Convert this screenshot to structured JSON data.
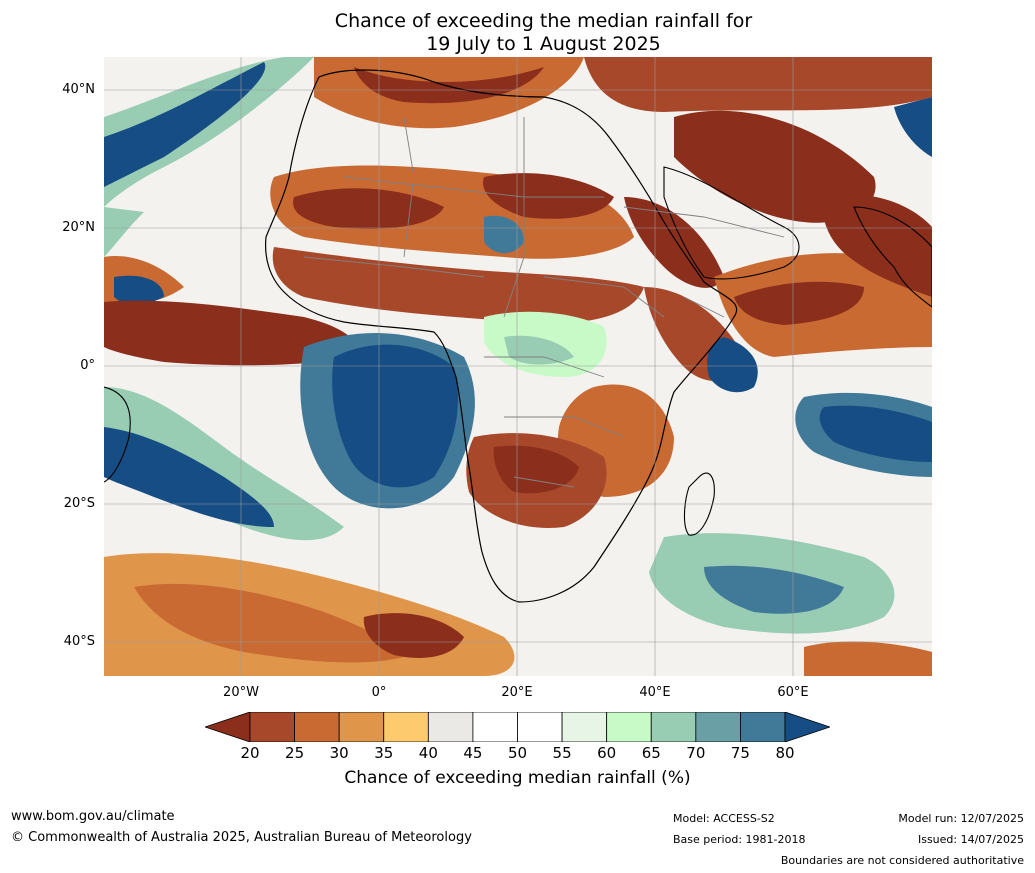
{
  "title": {
    "line1": "Chance of exceeding the median rainfall for",
    "line2": "19 July to 1 August 2025"
  },
  "map": {
    "region": "Africa",
    "lat_labels": [
      "40°N",
      "20°N",
      "0°",
      "20°S",
      "40°S"
    ],
    "lon_labels": [
      "20°W",
      "0°",
      "20°E",
      "40°E",
      "60°E"
    ]
  },
  "legend": {
    "ticks": [
      "20",
      "25",
      "30",
      "35",
      "40",
      "45",
      "50",
      "55",
      "60",
      "65",
      "70",
      "75",
      "80"
    ],
    "colors": [
      "#8b2e1c",
      "#a8482b",
      "#c96a33",
      "#e0964a",
      "#fdcb6e",
      "#ebe9e5",
      "#ffffff",
      "#ffffff",
      "#e6f5e6",
      "#c8fac8",
      "#98cdb4",
      "#6a9fa5",
      "#417a98",
      "#154d84"
    ],
    "label": "Chance of exceeding median rainfall (%)"
  },
  "footer": {
    "website": "www.bom.gov.au/climate",
    "copyright": "© Commonwealth of Australia 2025, Australian Bureau of Meteorology",
    "model": "Model: ACCESS-S2",
    "base_period": "Base period: 1981-2018",
    "model_run": "Model run: 12/07/2025",
    "issued": "Issued: 14/07/2025",
    "disclaimer": "Boundaries are not considered authoritative"
  }
}
